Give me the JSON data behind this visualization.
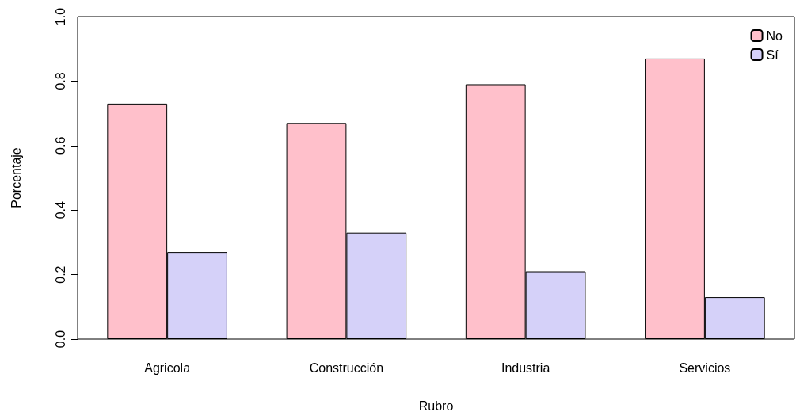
{
  "chart_data": {
    "type": "bar",
    "xlabel": "Rubro",
    "ylabel": "Porcentaje",
    "categories": [
      "Agricola",
      "Construcción",
      "Industria",
      "Servicios"
    ],
    "series": [
      {
        "name": "No",
        "color": "#ffc0cb",
        "values": [
          0.73,
          0.67,
          0.79,
          0.87
        ]
      },
      {
        "name": "Sí",
        "color": "#d5d1f9",
        "values": [
          0.27,
          0.33,
          0.21,
          0.13
        ]
      }
    ],
    "ylim": [
      0,
      1
    ],
    "yticks": [
      {
        "value": 0,
        "label": "0.0"
      },
      0.2,
      0.4,
      0.6,
      0.8,
      {
        "value": 1,
        "label": "1.0"
      }
    ],
    "grid": false,
    "legend": "top right"
  }
}
